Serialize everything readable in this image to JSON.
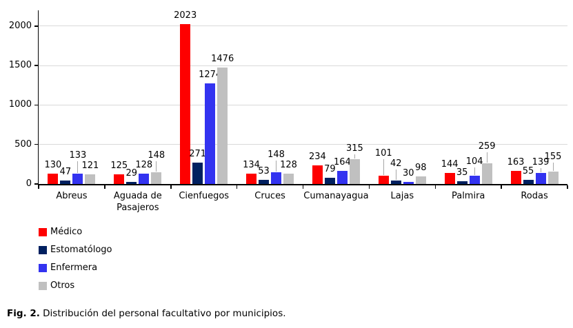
{
  "figure": {
    "caption_prefix": "Fig. 2.",
    "caption_text": " Distribución del personal facultativo por municipios."
  },
  "colors": {
    "medico": "#fe0000",
    "estomatologo": "#002060",
    "enfermera": "#3333f0",
    "otros": "#c0c0c0",
    "gridline": "#d9d9d9",
    "axis": "#000000",
    "leader_line": "#a6a6a6",
    "text": "#000000",
    "background": "#ffffff"
  },
  "chart_data": {
    "type": "bar",
    "title": "",
    "xlabel": "",
    "ylabel": "",
    "categories": [
      "Abreus",
      "Aguada de Pasajeros",
      "Cienfuegos",
      "Cruces",
      "Cumanayagua",
      "Lajas",
      "Palmira",
      "Rodas"
    ],
    "series": [
      {
        "name": "Médico",
        "color": "#fe0000",
        "values": [
          130,
          125,
          2023,
          134,
          234,
          101,
          144,
          163
        ]
      },
      {
        "name": "Estomatólogo",
        "color": "#002060",
        "values": [
          47,
          29,
          271,
          53,
          79,
          42,
          35,
          55
        ]
      },
      {
        "name": "Enfermera",
        "color": "#3333f0",
        "values": [
          133,
          128,
          1274,
          148,
          164,
          30,
          104,
          139
        ]
      },
      {
        "name": "Otros",
        "color": "#c0c0c0",
        "values": [
          121,
          148,
          1476,
          128,
          315,
          98,
          259,
          155
        ]
      }
    ],
    "yticks": [
      0,
      500,
      1000,
      1500,
      2000
    ],
    "ylim": [
      0,
      2200
    ],
    "grid": true,
    "data_labels": true,
    "legend_position": "bottom-left",
    "label_callouts": [
      {
        "category": "Abreus",
        "series": "Enfermera",
        "lift": 14
      },
      {
        "category": "Aguada de Pasajeros",
        "series": "Otros",
        "lift": 12
      },
      {
        "category": "Cruces",
        "series": "Enfermera",
        "lift": 13
      },
      {
        "category": "Cumanayagua",
        "series": "Otros",
        "lift": 3
      },
      {
        "category": "Lajas",
        "series": "Médico",
        "lift": 20
      },
      {
        "category": "Lajas",
        "series": "Estomatólogo",
        "lift": 12
      },
      {
        "category": "Palmira",
        "series": "Enfermera",
        "lift": 8
      },
      {
        "category": "Palmira",
        "series": "Otros",
        "lift": 12
      },
      {
        "category": "Rodas",
        "series": "Enfermera",
        "lift": 3
      },
      {
        "category": "Rodas",
        "series": "Otros",
        "lift": 9
      }
    ]
  }
}
